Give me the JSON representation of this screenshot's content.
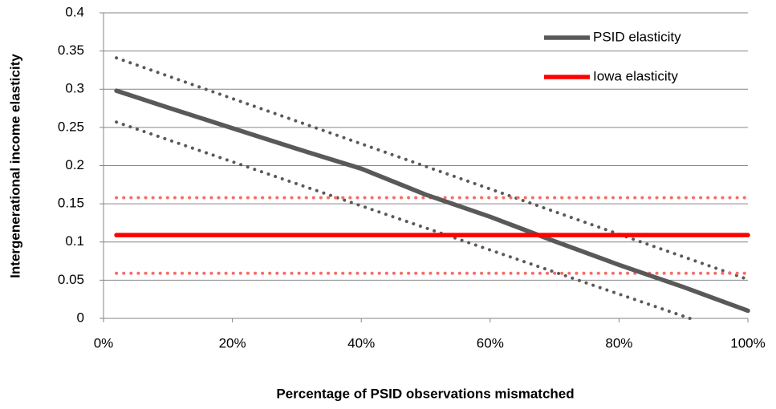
{
  "chart_data": {
    "type": "line",
    "x_label": "Percentage of PSID observations mismatched",
    "y_label": "Intergenerational income elasticity",
    "xlim": [
      0,
      100
    ],
    "xticks": [
      {
        "value": 0,
        "label": "0%"
      },
      {
        "value": 20,
        "label": "20%"
      },
      {
        "value": 40,
        "label": "40%"
      },
      {
        "value": 60,
        "label": "60%"
      },
      {
        "value": 80,
        "label": "80%"
      },
      {
        "value": 100,
        "label": "100%"
      }
    ],
    "ylim": [
      0,
      0.4
    ],
    "yticks": [
      0,
      0.05,
      0.1,
      0.15,
      0.2,
      0.25,
      0.3,
      0.35,
      0.4
    ],
    "grid": true,
    "legend": "upper right",
    "series": [
      {
        "color": "#595959",
        "line_style": "dotted",
        "x": [
          2,
          100
        ],
        "values": [
          0.341,
          0.051
        ]
      },
      {
        "color": "#595959",
        "line_style": "dotted",
        "x": [
          2,
          91
        ],
        "values": [
          0.257,
          0
        ]
      },
      {
        "color": "#f4706a",
        "line_style": "dotted",
        "x": [
          2,
          100
        ],
        "values": [
          0.158,
          0.158
        ]
      },
      {
        "color": "#f4706a",
        "line_style": "dotted",
        "x": [
          2,
          100
        ],
        "values": [
          0.059,
          0.059
        ]
      },
      {
        "name": "PSID elasticity",
        "color": "#595959",
        "line_style": "solid",
        "x": [
          2,
          10,
          20,
          30,
          40,
          50,
          60,
          70,
          80,
          90,
          100
        ],
        "values": [
          0.298,
          0.276,
          0.249,
          0.222,
          0.196,
          0.162,
          0.133,
          0.101,
          0.07,
          0.041,
          0.01
        ]
      },
      {
        "name": "Iowa elasticity",
        "color": "#ff0000",
        "line_style": "solid",
        "x": [
          2,
          100
        ],
        "values": [
          0.109,
          0.109
        ]
      }
    ]
  }
}
